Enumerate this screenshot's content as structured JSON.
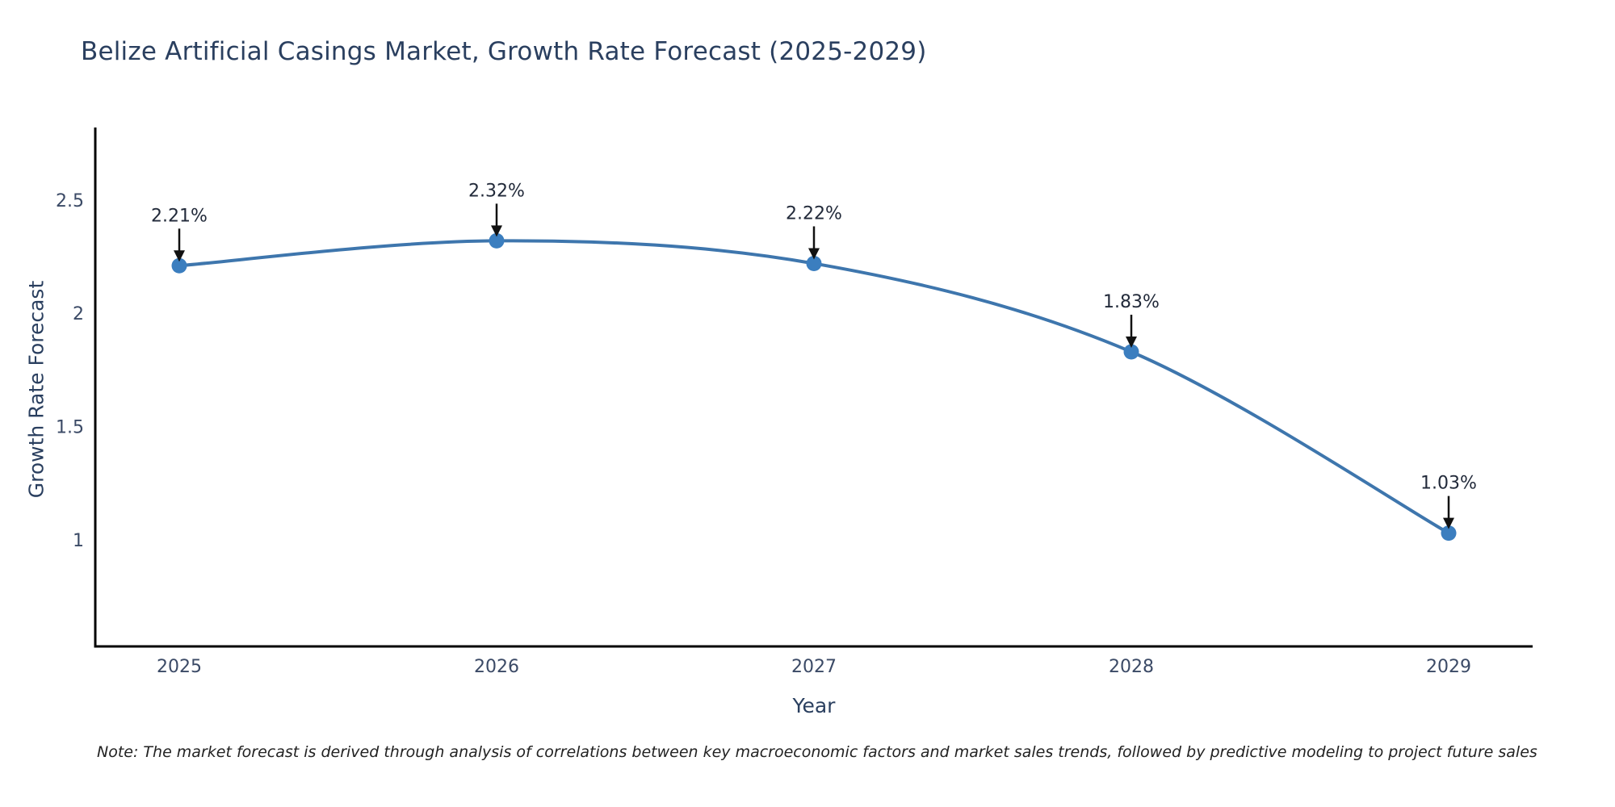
{
  "title": "Belize Artificial Casings Market, Growth Rate Forecast (2025-2029)",
  "footnote": "Note: The market forecast is derived through analysis of correlations between key macroeconomic factors and market sales trends, followed by predictive modeling to project future sales",
  "chart_data": {
    "type": "line",
    "title": "Belize Artificial Casings Market, Growth Rate Forecast (2025-2029)",
    "x": [
      2025,
      2026,
      2027,
      2028,
      2029
    ],
    "series": [
      {
        "name": "Growth Rate Forecast",
        "values": [
          2.21,
          2.32,
          2.22,
          1.83,
          1.03
        ],
        "point_labels": [
          "2.21%",
          "2.32%",
          "2.22%",
          "1.83%",
          "1.03%"
        ]
      }
    ],
    "xlabel": "Year",
    "ylabel": "Growth Rate Forecast",
    "yticks": [
      1,
      1.5,
      2,
      2.5
    ],
    "ylim": [
      0.53,
      2.82
    ],
    "grid": false,
    "legend": false,
    "line_smooth": true,
    "colors": {
      "line": "#3e76ad",
      "marker": "#3b7ebf",
      "axis_line": "#000000",
      "title_text": "#2a3f5f",
      "tick_text": "#3b4a66",
      "annotation_text": "#222a3a",
      "annotation_arrow": "#111111",
      "background": "#ffffff"
    }
  }
}
